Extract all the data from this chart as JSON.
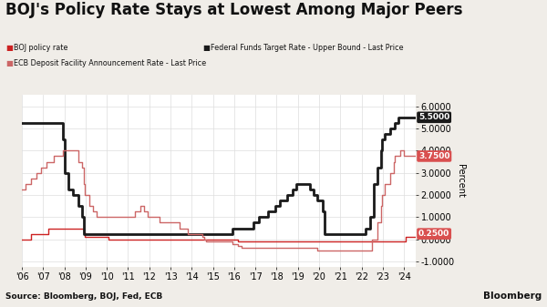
{
  "title": "BOJ's Policy Rate Stays at Lowest Among Major Peers",
  "source": "Source: Bloomberg, BOJ, Fed, ECB",
  "bloomberg_label": "Bloomberg",
  "ylabel": "Percent",
  "ylim": [
    -1.25,
    6.5
  ],
  "yticks": [
    -1.0,
    0.0,
    1.0,
    2.0,
    3.0,
    4.0,
    5.0,
    6.0
  ],
  "xlim_left": 2006.0,
  "xlim_right": 2024.55,
  "xtick_years": [
    2006,
    2007,
    2008,
    2009,
    2010,
    2011,
    2012,
    2013,
    2014,
    2015,
    2016,
    2017,
    2018,
    2019,
    2020,
    2021,
    2022,
    2023,
    2024
  ],
  "boj_color": "#cc2222",
  "fed_color": "#1a1a1a",
  "ecb_color": "#cc6666",
  "boj_lw": 1.0,
  "fed_lw": 2.0,
  "ecb_lw": 1.0,
  "boj_data": [
    [
      2006.0,
      0.0
    ],
    [
      2006.42,
      0.0
    ],
    [
      2006.42,
      0.25
    ],
    [
      2007.25,
      0.25
    ],
    [
      2007.25,
      0.5
    ],
    [
      2008.92,
      0.5
    ],
    [
      2008.92,
      0.3
    ],
    [
      2008.95,
      0.3
    ],
    [
      2008.95,
      0.1
    ],
    [
      2010.08,
      0.1
    ],
    [
      2010.08,
      0.0
    ],
    [
      2013.0,
      0.0
    ],
    [
      2016.17,
      0.0
    ],
    [
      2016.17,
      -0.1
    ],
    [
      2024.08,
      -0.1
    ],
    [
      2024.08,
      0.1
    ],
    [
      2024.55,
      0.1
    ]
  ],
  "fed_data": [
    [
      2006.0,
      5.25
    ],
    [
      2007.92,
      5.25
    ],
    [
      2007.92,
      4.5
    ],
    [
      2008.0,
      4.5
    ],
    [
      2008.0,
      3.0
    ],
    [
      2008.17,
      3.0
    ],
    [
      2008.17,
      2.25
    ],
    [
      2008.42,
      2.25
    ],
    [
      2008.42,
      2.0
    ],
    [
      2008.67,
      2.0
    ],
    [
      2008.67,
      1.5
    ],
    [
      2008.83,
      1.5
    ],
    [
      2008.83,
      1.0
    ],
    [
      2008.92,
      1.0
    ],
    [
      2008.92,
      0.25
    ],
    [
      2015.92,
      0.25
    ],
    [
      2015.92,
      0.5
    ],
    [
      2016.92,
      0.5
    ],
    [
      2016.92,
      0.75
    ],
    [
      2017.17,
      0.75
    ],
    [
      2017.17,
      1.0
    ],
    [
      2017.58,
      1.0
    ],
    [
      2017.58,
      1.25
    ],
    [
      2017.92,
      1.25
    ],
    [
      2017.92,
      1.5
    ],
    [
      2018.17,
      1.5
    ],
    [
      2018.17,
      1.75
    ],
    [
      2018.5,
      1.75
    ],
    [
      2018.5,
      2.0
    ],
    [
      2018.75,
      2.0
    ],
    [
      2018.75,
      2.25
    ],
    [
      2018.92,
      2.25
    ],
    [
      2018.92,
      2.5
    ],
    [
      2019.58,
      2.5
    ],
    [
      2019.58,
      2.25
    ],
    [
      2019.75,
      2.25
    ],
    [
      2019.75,
      2.0
    ],
    [
      2019.92,
      2.0
    ],
    [
      2019.92,
      1.75
    ],
    [
      2020.17,
      1.75
    ],
    [
      2020.17,
      1.25
    ],
    [
      2020.25,
      1.25
    ],
    [
      2020.25,
      0.25
    ],
    [
      2022.17,
      0.25
    ],
    [
      2022.17,
      0.5
    ],
    [
      2022.42,
      0.5
    ],
    [
      2022.42,
      1.0
    ],
    [
      2022.58,
      1.0
    ],
    [
      2022.58,
      2.5
    ],
    [
      2022.75,
      2.5
    ],
    [
      2022.75,
      3.25
    ],
    [
      2022.92,
      3.25
    ],
    [
      2022.92,
      4.0
    ],
    [
      2022.97,
      4.0
    ],
    [
      2022.97,
      4.5
    ],
    [
      2023.08,
      4.5
    ],
    [
      2023.08,
      4.75
    ],
    [
      2023.33,
      4.75
    ],
    [
      2023.33,
      5.0
    ],
    [
      2023.58,
      5.0
    ],
    [
      2023.58,
      5.25
    ],
    [
      2023.75,
      5.25
    ],
    [
      2023.75,
      5.5
    ],
    [
      2024.55,
      5.5
    ]
  ],
  "ecb_data": [
    [
      2006.0,
      2.25
    ],
    [
      2006.17,
      2.25
    ],
    [
      2006.17,
      2.5
    ],
    [
      2006.42,
      2.5
    ],
    [
      2006.42,
      2.75
    ],
    [
      2006.67,
      2.75
    ],
    [
      2006.67,
      3.0
    ],
    [
      2006.92,
      3.0
    ],
    [
      2006.92,
      3.25
    ],
    [
      2007.17,
      3.25
    ],
    [
      2007.17,
      3.5
    ],
    [
      2007.5,
      3.5
    ],
    [
      2007.5,
      3.75
    ],
    [
      2007.92,
      3.75
    ],
    [
      2007.92,
      4.0
    ],
    [
      2008.67,
      4.0
    ],
    [
      2008.67,
      3.5
    ],
    [
      2008.83,
      3.5
    ],
    [
      2008.83,
      3.25
    ],
    [
      2008.92,
      3.25
    ],
    [
      2008.92,
      2.5
    ],
    [
      2008.97,
      2.5
    ],
    [
      2008.97,
      2.0
    ],
    [
      2009.17,
      2.0
    ],
    [
      2009.17,
      1.5
    ],
    [
      2009.33,
      1.5
    ],
    [
      2009.33,
      1.25
    ],
    [
      2009.5,
      1.25
    ],
    [
      2009.5,
      1.0
    ],
    [
      2011.33,
      1.0
    ],
    [
      2011.33,
      1.25
    ],
    [
      2011.58,
      1.25
    ],
    [
      2011.58,
      1.5
    ],
    [
      2011.75,
      1.5
    ],
    [
      2011.75,
      1.25
    ],
    [
      2011.92,
      1.25
    ],
    [
      2011.92,
      1.0
    ],
    [
      2012.5,
      1.0
    ],
    [
      2012.5,
      0.75
    ],
    [
      2013.42,
      0.75
    ],
    [
      2013.42,
      0.5
    ],
    [
      2013.83,
      0.5
    ],
    [
      2013.83,
      0.25
    ],
    [
      2014.5,
      0.25
    ],
    [
      2014.5,
      0.1
    ],
    [
      2014.58,
      0.1
    ],
    [
      2014.58,
      0.0
    ],
    [
      2014.67,
      0.0
    ],
    [
      2014.67,
      -0.1
    ],
    [
      2015.92,
      -0.1
    ],
    [
      2015.92,
      -0.2
    ],
    [
      2016.17,
      -0.2
    ],
    [
      2016.17,
      -0.3
    ],
    [
      2016.33,
      -0.3
    ],
    [
      2016.33,
      -0.4
    ],
    [
      2019.92,
      -0.4
    ],
    [
      2019.92,
      -0.5
    ],
    [
      2022.5,
      -0.5
    ],
    [
      2022.5,
      0.0
    ],
    [
      2022.75,
      0.0
    ],
    [
      2022.75,
      0.75
    ],
    [
      2022.92,
      0.75
    ],
    [
      2022.92,
      1.5
    ],
    [
      2022.97,
      1.5
    ],
    [
      2022.97,
      2.0
    ],
    [
      2023.08,
      2.0
    ],
    [
      2023.08,
      2.5
    ],
    [
      2023.33,
      2.5
    ],
    [
      2023.33,
      3.0
    ],
    [
      2023.5,
      3.0
    ],
    [
      2023.5,
      3.5
    ],
    [
      2023.58,
      3.5
    ],
    [
      2023.58,
      3.75
    ],
    [
      2023.83,
      3.75
    ],
    [
      2023.83,
      4.0
    ],
    [
      2024.0,
      4.0
    ],
    [
      2024.0,
      3.75
    ],
    [
      2024.55,
      3.75
    ]
  ],
  "bg_color": "#f0ede8",
  "plot_bg_color": "#ffffff",
  "grid_color": "#dddddd",
  "title_fontsize": 12,
  "axis_fontsize": 7,
  "source_fontsize": 6.5
}
